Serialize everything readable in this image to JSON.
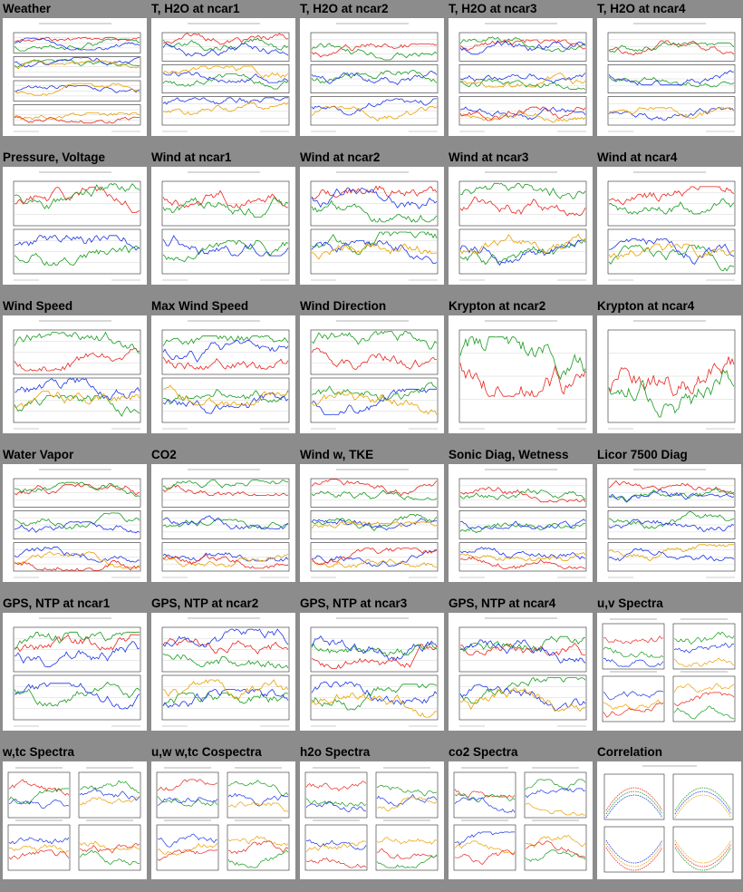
{
  "colors": {
    "page_bg": "#8c8c8c",
    "plot_bg": "#ffffff",
    "red": "#e8261e",
    "green": "#169c1d",
    "blue": "#1c33e6",
    "orange": "#e8a000",
    "black": "#000000"
  },
  "thumbnails": [
    {
      "title": "Weather",
      "kind": "panels",
      "panels": 4,
      "icon": "weather-plot-thumbnail"
    },
    {
      "title": "T, H2O at ncar1",
      "kind": "panels",
      "panels": 3,
      "icon": "temperature-humidity-plot-thumbnail"
    },
    {
      "title": "T, H2O at ncar2",
      "kind": "panels",
      "panels": 3,
      "icon": "temperature-humidity-plot-thumbnail"
    },
    {
      "title": "T, H2O at ncar3",
      "kind": "panels",
      "panels": 3,
      "icon": "temperature-humidity-plot-thumbnail"
    },
    {
      "title": "T, H2O at ncar4",
      "kind": "panels",
      "panels": 3,
      "icon": "temperature-humidity-plot-thumbnail"
    },
    {
      "title": "Pressure, Voltage",
      "kind": "panels",
      "panels": 2,
      "icon": "pressure-voltage-plot-thumbnail"
    },
    {
      "title": "Wind at ncar1",
      "kind": "panels",
      "panels": 2,
      "icon": "wind-plot-thumbnail"
    },
    {
      "title": "Wind at ncar2",
      "kind": "panels",
      "panels": 2,
      "icon": "wind-plot-thumbnail"
    },
    {
      "title": "Wind at ncar3",
      "kind": "panels",
      "panels": 2,
      "icon": "wind-plot-thumbnail"
    },
    {
      "title": "Wind at ncar4",
      "kind": "panels",
      "panels": 2,
      "icon": "wind-plot-thumbnail"
    },
    {
      "title": "Wind Speed",
      "kind": "panels",
      "panels": 2,
      "icon": "wind-speed-plot-thumbnail"
    },
    {
      "title": "Max Wind Speed",
      "kind": "panels",
      "panels": 2,
      "icon": "max-wind-speed-plot-thumbnail"
    },
    {
      "title": "Wind Direction",
      "kind": "panels",
      "panels": 2,
      "icon": "wind-direction-plot-thumbnail"
    },
    {
      "title": "Krypton at ncar2",
      "kind": "panels",
      "panels": 1,
      "icon": "krypton-plot-thumbnail"
    },
    {
      "title": "Krypton at ncar4",
      "kind": "panels",
      "panels": 1,
      "icon": "krypton-plot-thumbnail"
    },
    {
      "title": "Water Vapor",
      "kind": "panels",
      "panels": 3,
      "icon": "water-vapor-plot-thumbnail"
    },
    {
      "title": "CO2",
      "kind": "panels",
      "panels": 3,
      "icon": "co2-plot-thumbnail"
    },
    {
      "title": "Wind w, TKE",
      "kind": "panels",
      "panels": 3,
      "icon": "wind-w-tke-plot-thumbnail"
    },
    {
      "title": "Sonic Diag, Wetness",
      "kind": "panels",
      "panels": 3,
      "icon": "sonic-diag-plot-thumbnail"
    },
    {
      "title": "Licor 7500 Diag",
      "kind": "panels",
      "panels": 3,
      "icon": "licor-diag-plot-thumbnail"
    },
    {
      "title": "GPS, NTP at ncar1",
      "kind": "panels",
      "panels": 2,
      "icon": "gps-ntp-plot-thumbnail"
    },
    {
      "title": "GPS, NTP at ncar2",
      "kind": "panels",
      "panels": 2,
      "icon": "gps-ntp-plot-thumbnail"
    },
    {
      "title": "GPS, NTP at ncar3",
      "kind": "panels",
      "panels": 2,
      "icon": "gps-ntp-plot-thumbnail"
    },
    {
      "title": "GPS, NTP at ncar4",
      "kind": "panels",
      "panels": 2,
      "icon": "gps-ntp-plot-thumbnail"
    },
    {
      "title": "u,v Spectra",
      "kind": "spectra",
      "icon": "spectra-plot-thumbnail"
    },
    {
      "title": "w,tc Spectra",
      "kind": "spectra",
      "icon": "spectra-plot-thumbnail"
    },
    {
      "title": "u,w w,tc Cospectra",
      "kind": "spectra",
      "icon": "cospectra-plot-thumbnail"
    },
    {
      "title": "h2o Spectra",
      "kind": "spectra",
      "icon": "spectra-plot-thumbnail"
    },
    {
      "title": "co2 Spectra",
      "kind": "spectra",
      "icon": "spectra-plot-thumbnail"
    },
    {
      "title": "Correlation",
      "kind": "correlation",
      "icon": "correlation-plot-thumbnail"
    }
  ]
}
